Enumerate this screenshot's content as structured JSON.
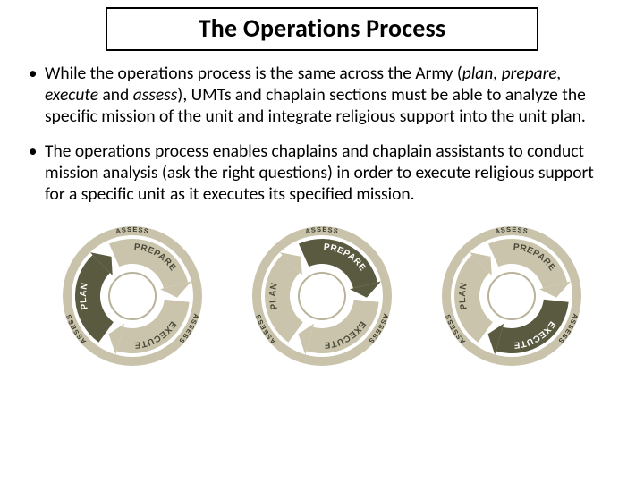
{
  "title": "The Operations Process",
  "bullets": [
    {
      "pre": "While the operations process is the same across the Army (",
      "ital1": "plan, prepare, execute ",
      "mid": "and ",
      "ital2": "assess",
      "post": "), UMTs and chaplain sections must be able to analyze the specific mission of the unit and integrate religious support into the unit plan."
    },
    {
      "text": "The operations process enables chaplains and chaplain assistants to conduct mission analysis (ask the right questions) in order to execute religious support for a specific unit as it executes its specified mission."
    }
  ],
  "diagram": {
    "labels": {
      "plan": "PLAN",
      "prepare": "PREPARE",
      "execute": "EXECUTE",
      "assess": "ASSESS"
    },
    "colors": {
      "dark": "#5a5a40",
      "light": "#b8b39a",
      "lightArrow": "#c9c4ab",
      "outerRing": "#c8c3aa",
      "innerFill": "#ffffff"
    },
    "highlights": [
      "plan",
      "prepare",
      "execute"
    ]
  }
}
